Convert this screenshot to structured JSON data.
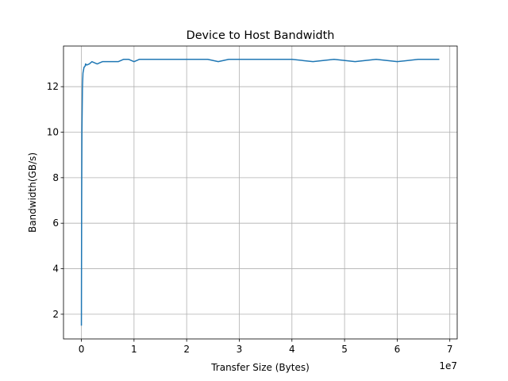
{
  "chart_data": {
    "type": "line",
    "title": "Device to Host Bandwidth",
    "xlabel": "Transfer Size (Bytes)",
    "ylabel": "Bandwidth(GB/s)",
    "x_offset_label": "1e7",
    "xlim": [
      -3400000,
      71400000
    ],
    "ylim": [
      0.915,
      13.785
    ],
    "x_tick_values": [
      0,
      10000000,
      20000000,
      30000000,
      40000000,
      50000000,
      60000000,
      70000000
    ],
    "x_tick_labels": [
      "0",
      "1",
      "2",
      "3",
      "4",
      "5",
      "6",
      "7"
    ],
    "y_tick_values": [
      2,
      4,
      6,
      8,
      10,
      12
    ],
    "y_tick_labels": [
      "2",
      "4",
      "6",
      "8",
      "10",
      "12"
    ],
    "grid": true,
    "colors": {
      "line": "#1f77b4",
      "grid": "#b0b0b0",
      "axis": "#000000"
    },
    "series": [
      {
        "name": "",
        "x": [
          1000,
          20000,
          50000,
          100000,
          200000,
          300000,
          500000,
          700000,
          800000,
          1000000,
          1500000,
          2000000,
          3000000,
          4000000,
          5000000,
          6000000,
          7000000,
          8000000,
          9000000,
          10000000,
          11000000,
          12000000,
          14000000,
          16000000,
          20000000,
          24000000,
          26000000,
          28000000,
          32000000,
          36000000,
          40000000,
          44000000,
          48000000,
          52000000,
          56000000,
          60000000,
          64000000,
          68000000
        ],
        "y": [
          1.5,
          4.0,
          7.0,
          10.0,
          12.0,
          12.6,
          12.85,
          12.9,
          13.0,
          12.95,
          13.0,
          13.1,
          13.0,
          13.1,
          13.1,
          13.1,
          13.1,
          13.2,
          13.2,
          13.1,
          13.2,
          13.2,
          13.2,
          13.2,
          13.2,
          13.2,
          13.1,
          13.2,
          13.2,
          13.2,
          13.2,
          13.1,
          13.2,
          13.1,
          13.2,
          13.1,
          13.2,
          13.2
        ]
      }
    ]
  }
}
